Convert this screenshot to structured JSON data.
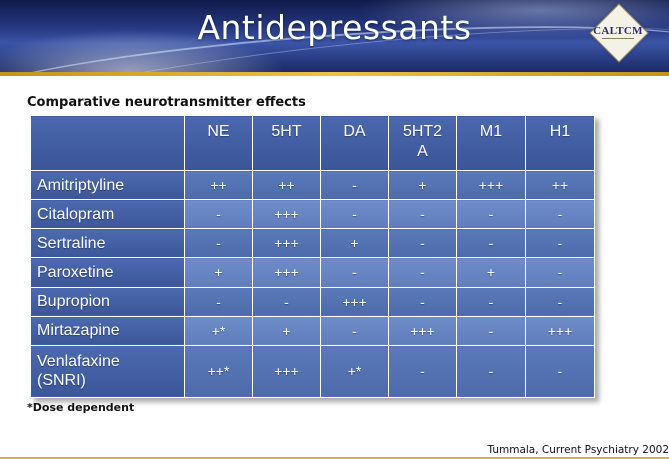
{
  "slide": {
    "title": "Antidepressants",
    "logo_text": "CALTCM",
    "subtitle": "Comparative neurotransmitter effects",
    "footnote": "*Dose dependent",
    "citation": "Tummala, Current Psychiatry 2002"
  },
  "table": {
    "columns": [
      "NE",
      "5HT",
      "DA",
      "5HT2\nA",
      "M1",
      "H1"
    ],
    "rows": [
      {
        "drug": "Amitriptyline",
        "values": [
          "++",
          "++",
          "-",
          "+",
          "+++",
          "++"
        ]
      },
      {
        "drug": "Citalopram",
        "values": [
          "-",
          "+++",
          "-",
          "-",
          "-",
          "-"
        ]
      },
      {
        "drug": "Sertraline",
        "values": [
          "-",
          "+++",
          "+",
          "-",
          "-",
          "-"
        ]
      },
      {
        "drug": "Paroxetine",
        "values": [
          "+",
          "+++",
          "-",
          "-",
          "+",
          "-"
        ]
      },
      {
        "drug": "Bupropion",
        "values": [
          "-",
          "-",
          "+++",
          "-",
          "-",
          "-"
        ]
      },
      {
        "drug": "Mirtazapine",
        "values": [
          "+*",
          "+",
          "-",
          "+++",
          "-",
          "+++"
        ]
      },
      {
        "drug": "Venlafaxine\n(SNRI)",
        "values": [
          "++*",
          "+++",
          "+*",
          "-",
          "-",
          "-"
        ]
      }
    ]
  },
  "colors": {
    "header_blue": "#3f5b9f",
    "cell_blue": "#5f7dbb",
    "accent_gold": "#e0ad3a"
  }
}
